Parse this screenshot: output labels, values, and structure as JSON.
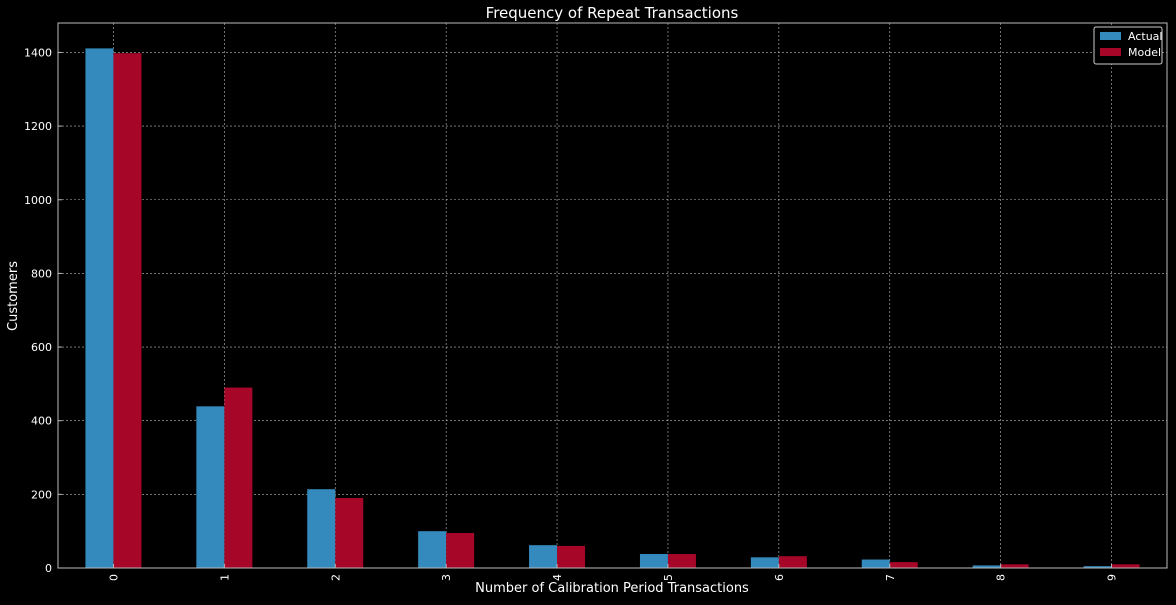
{
  "chart_data": {
    "type": "bar",
    "title": "Frequency of Repeat Transactions",
    "xlabel": "Number of Calibration Period Transactions",
    "ylabel": "Customers",
    "categories": [
      "0",
      "1",
      "2",
      "3",
      "4",
      "5",
      "6",
      "7",
      "8",
      "9"
    ],
    "series": [
      {
        "name": "Actual",
        "color": "#348ABD",
        "values": [
          1411,
          439,
          214,
          100,
          62,
          38,
          29,
          23,
          7,
          5
        ]
      },
      {
        "name": "Model",
        "color": "#A60628",
        "values": [
          1398,
          490,
          190,
          95,
          60,
          38,
          32,
          16,
          10,
          10
        ]
      }
    ],
    "ylim": [
      0,
      1480
    ],
    "yticks": [
      0,
      200,
      400,
      600,
      800,
      1000,
      1200,
      1400
    ],
    "grid": true,
    "legend_position": "top-right",
    "colors": {
      "background": "#000000",
      "text": "#FFFFFF",
      "grid": "#BBBBBB"
    }
  }
}
